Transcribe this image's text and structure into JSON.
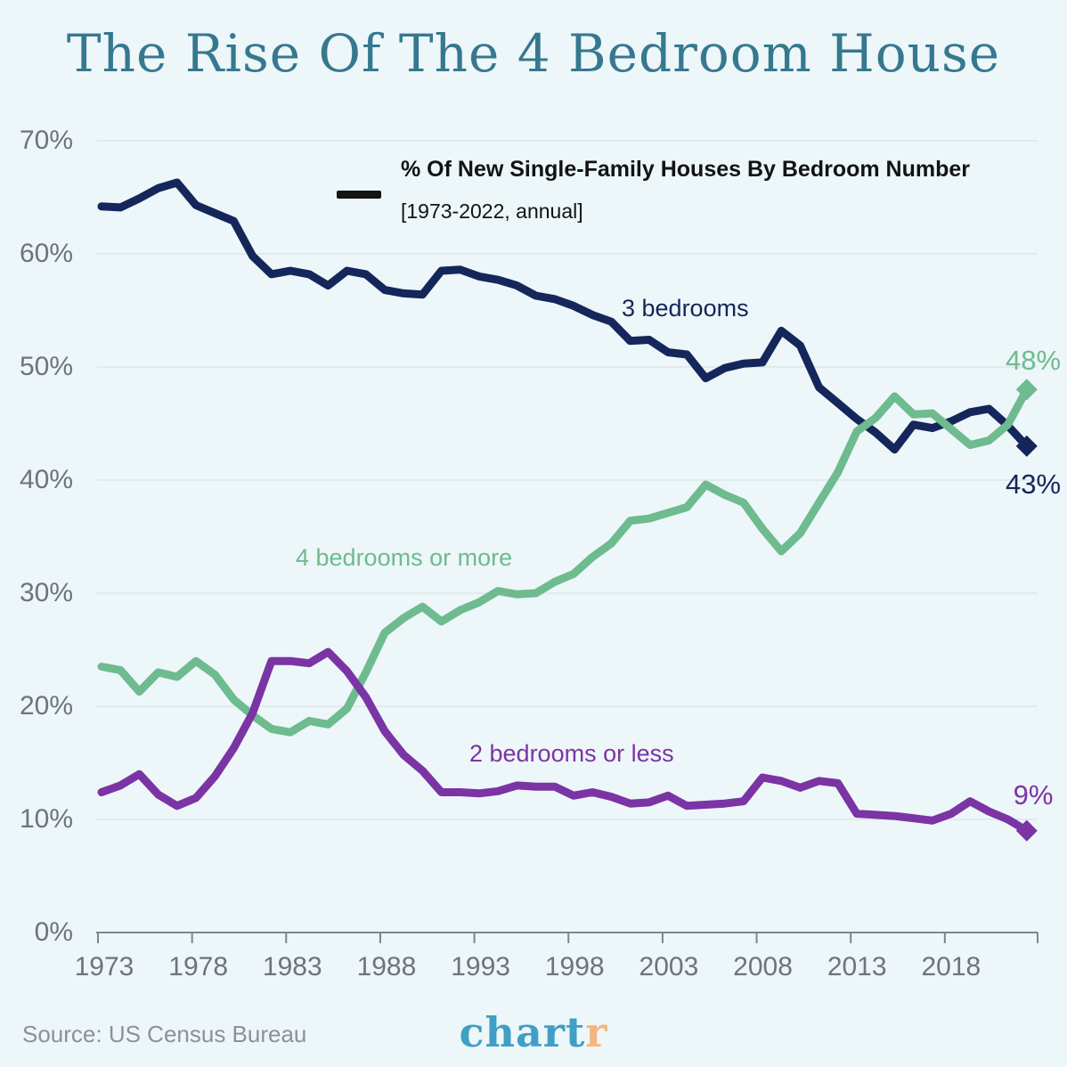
{
  "title": "The Rise Of The 4 Bedroom House",
  "legend": {
    "swatch": "black-dash",
    "label": "% Of New Single-Family Houses By Bedroom Number",
    "sublabel": "[1973-2022, annual]"
  },
  "footer": {
    "source": "Source: US Census Bureau",
    "logo_main": "chart",
    "logo_accent": "r"
  },
  "colors": {
    "background": "#edf6f9",
    "title": "#35788f",
    "three_bedrooms": "#14265a",
    "four_or_more": "#6dbb8e",
    "two_or_less": "#7b34a4",
    "axis_text": "#6e737c",
    "gridline": "#e1eaed",
    "axis_line": "#7e858c",
    "legend_text": "#131313",
    "source_text": "#8d9197",
    "logo_main": "#3f9fc4",
    "logo_accent": "#f4b67e"
  },
  "chart_data": {
    "type": "line",
    "title": "The Rise Of The 4 Bedroom House",
    "subtitle": "% Of New Single-Family Houses By Bedroom Number [1973-2022, annual]",
    "grid": "horizontal",
    "legend_position": "top-center",
    "ylim": [
      0,
      70
    ],
    "x": [
      1973,
      1974,
      1975,
      1976,
      1977,
      1978,
      1979,
      1980,
      1981,
      1982,
      1983,
      1984,
      1985,
      1986,
      1987,
      1988,
      1989,
      1990,
      1991,
      1992,
      1993,
      1994,
      1995,
      1996,
      1997,
      1998,
      1999,
      2000,
      2001,
      2002,
      2003,
      2004,
      2005,
      2006,
      2007,
      2008,
      2009,
      2010,
      2011,
      2012,
      2013,
      2014,
      2015,
      2016,
      2017,
      2018,
      2019,
      2020,
      2021,
      2022
    ],
    "y_ticks": [
      {
        "label": "70%",
        "value": 70
      },
      {
        "label": "60%",
        "value": 60
      },
      {
        "label": "50%",
        "value": 50
      },
      {
        "label": "40%",
        "value": 40
      },
      {
        "label": "30%",
        "value": 30
      },
      {
        "label": "20%",
        "value": 20
      },
      {
        "label": "10%",
        "value": 10
      },
      {
        "label": "0%",
        "value": 0
      }
    ],
    "x_ticks": [
      {
        "label": "1973",
        "value": 1973
      },
      {
        "label": "1978",
        "value": 1978
      },
      {
        "label": "1983",
        "value": 1983
      },
      {
        "label": "1988",
        "value": 1988
      },
      {
        "label": "1993",
        "value": 1993
      },
      {
        "label": "1998",
        "value": 1998
      },
      {
        "label": "2003",
        "value": 2003
      },
      {
        "label": "2008",
        "value": 2008
      },
      {
        "label": "2013",
        "value": 2013
      },
      {
        "label": "2018",
        "value": 2018
      }
    ],
    "series": [
      {
        "name": "3 bedrooms",
        "color_key": "three_bedrooms",
        "end_label": "43%",
        "values": [
          64.2,
          64.1,
          64.9,
          65.8,
          66.3,
          64.3,
          63.6,
          62.9,
          59.8,
          58.2,
          58.5,
          58.2,
          57.2,
          58.5,
          58.2,
          56.8,
          56.5,
          56.4,
          58.5,
          58.6,
          58.0,
          57.7,
          57.2,
          56.3,
          56.0,
          55.4,
          54.6,
          54.0,
          52.3,
          52.4,
          51.3,
          51.1,
          49.0,
          49.9,
          50.3,
          50.4,
          53.2,
          51.9,
          48.2,
          46.8,
          45.4,
          44.2,
          42.7,
          44.9,
          44.6,
          45.2,
          46.0,
          46.3,
          44.8,
          43.0
        ]
      },
      {
        "name": "4 bedrooms or more",
        "color_key": "four_or_more",
        "end_label": "48%",
        "values": [
          23.5,
          23.2,
          21.3,
          23.0,
          22.6,
          24.0,
          22.8,
          20.6,
          19.2,
          18.0,
          17.7,
          18.7,
          18.4,
          19.8,
          23.0,
          26.5,
          27.8,
          28.8,
          27.5,
          28.5,
          29.2,
          30.2,
          29.9,
          30.0,
          31.0,
          31.7,
          33.2,
          34.4,
          36.4,
          36.6,
          37.1,
          37.6,
          39.6,
          38.7,
          38.0,
          35.7,
          33.7,
          35.3,
          38.0,
          40.7,
          44.3,
          45.5,
          47.4,
          45.8,
          45.9,
          44.5,
          43.1,
          43.5,
          44.9,
          48.0
        ]
      },
      {
        "name": "2 bedrooms or less",
        "color_key": "two_or_less",
        "end_label": "9%",
        "values": [
          12.4,
          13.0,
          14.0,
          12.2,
          11.2,
          11.9,
          13.8,
          16.3,
          19.4,
          24.0,
          24.0,
          23.8,
          24.8,
          23.1,
          20.8,
          17.8,
          15.7,
          14.3,
          12.4,
          12.4,
          12.3,
          12.5,
          13.0,
          12.9,
          12.9,
          12.1,
          12.4,
          12.0,
          11.4,
          11.5,
          12.1,
          11.2,
          11.3,
          11.4,
          11.6,
          13.7,
          13.4,
          12.8,
          13.4,
          13.2,
          10.5,
          10.4,
          10.3,
          10.1,
          9.9,
          10.5,
          11.6,
          10.7,
          10.0,
          9.0
        ]
      }
    ]
  }
}
